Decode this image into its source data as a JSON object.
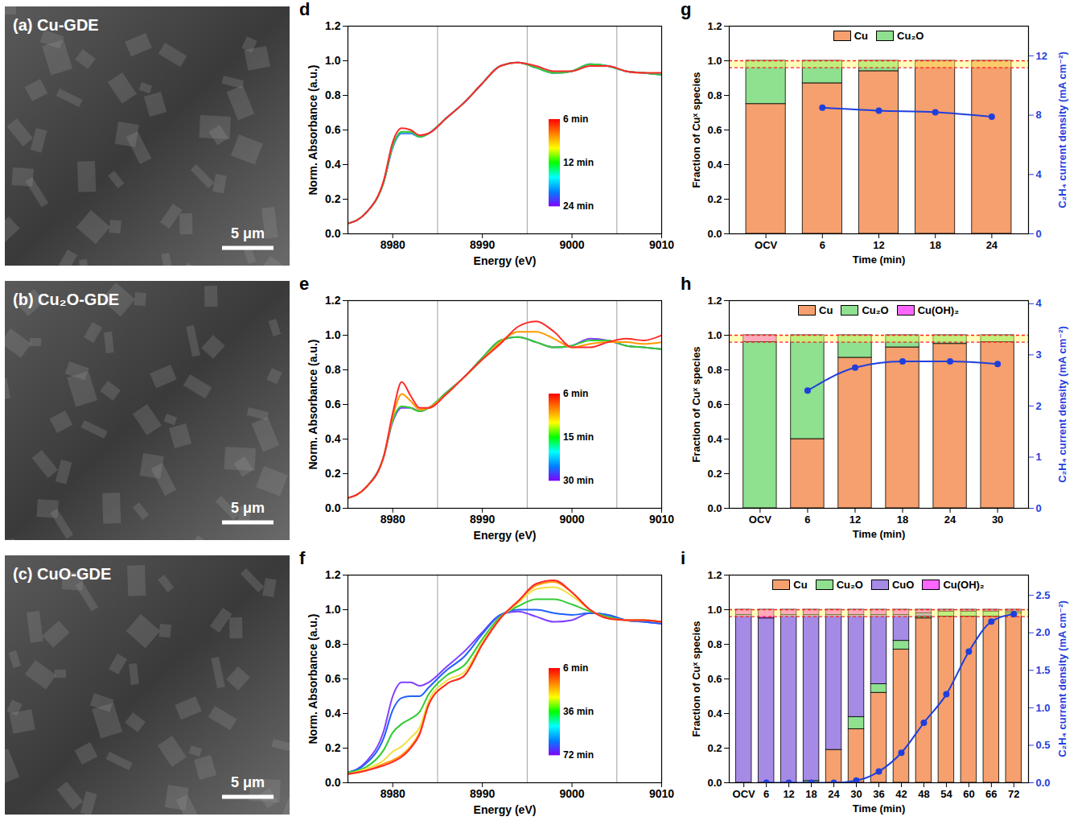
{
  "images": [
    {
      "label": "(a) Cu-GDE",
      "scale_bar": "5 μm"
    },
    {
      "label": "(b) Cu₂O-GDE",
      "scale_bar": "5 μm"
    },
    {
      "label": "(c) CuO-GDE",
      "scale_bar": "5 μm"
    }
  ],
  "chart_data": [
    {
      "type": "line",
      "panel_label": "d",
      "xlabel": "Energy (eV)",
      "ylabel": "Norm. Absorbance (a.u.)",
      "xlim": [
        8975,
        9010
      ],
      "xticks": [
        8980,
        8990,
        9000,
        9010
      ],
      "ylim": [
        0,
        1.2
      ],
      "yticks": [
        {
          "value": 0,
          "label": "0.0"
        },
        {
          "value": 0.2,
          "label": "0.2"
        },
        {
          "value": 0.4,
          "label": "0.4"
        },
        {
          "value": 0.6,
          "label": "0.6"
        },
        {
          "value": 0.8,
          "label": "0.8"
        },
        {
          "value": 1,
          "label": "1.0"
        },
        {
          "value": 1.2,
          "label": "1.2"
        }
      ],
      "reference_lines": [
        8985,
        8995,
        9005
      ],
      "x": [
        8975,
        8977,
        8979,
        8980,
        8981,
        8982,
        8983,
        8984,
        8986,
        8988,
        8990,
        8992,
        8994,
        8996,
        8998,
        9000,
        9002,
        9004,
        9006,
        9008,
        9010
      ],
      "series": [
        {
          "color": "#8040ff",
          "values": [
            0.06,
            0.12,
            0.3,
            0.5,
            0.58,
            0.58,
            0.56,
            0.58,
            0.67,
            0.76,
            0.87,
            0.97,
            0.99,
            0.96,
            0.93,
            0.94,
            0.98,
            0.97,
            0.94,
            0.93,
            0.92
          ]
        },
        {
          "color": "#3399ff",
          "values": [
            0.06,
            0.12,
            0.3,
            0.5,
            0.58,
            0.58,
            0.56,
            0.58,
            0.67,
            0.76,
            0.87,
            0.97,
            0.99,
            0.96,
            0.93,
            0.94,
            0.98,
            0.97,
            0.94,
            0.93,
            0.92
          ]
        },
        {
          "color": "#33cc33",
          "values": [
            0.06,
            0.12,
            0.3,
            0.51,
            0.59,
            0.59,
            0.56,
            0.58,
            0.67,
            0.76,
            0.87,
            0.97,
            0.99,
            0.96,
            0.93,
            0.94,
            0.98,
            0.97,
            0.94,
            0.93,
            0.92
          ]
        },
        {
          "color": "#ff2a2a",
          "values": [
            0.06,
            0.12,
            0.31,
            0.53,
            0.61,
            0.6,
            0.57,
            0.58,
            0.67,
            0.76,
            0.87,
            0.97,
            0.99,
            0.97,
            0.94,
            0.94,
            0.97,
            0.97,
            0.94,
            0.93,
            0.93
          ]
        }
      ],
      "colorbar": {
        "labels": [
          "6 min",
          "12 min",
          "24 min"
        ],
        "colors": [
          "#ff0000",
          "#ff8000",
          "#ffff00",
          "#00ff00",
          "#00ffff",
          "#0080ff",
          "#8000ff"
        ]
      }
    },
    {
      "type": "line",
      "panel_label": "e",
      "xlabel": "Energy (eV)",
      "ylabel": "Norm. Absorbance (a.u.)",
      "xlim": [
        8975,
        9010
      ],
      "xticks": [
        8980,
        8990,
        9000,
        9010
      ],
      "ylim": [
        0,
        1.2
      ],
      "yticks": [
        {
          "value": 0,
          "label": "0.0"
        },
        {
          "value": 0.2,
          "label": "0.2"
        },
        {
          "value": 0.4,
          "label": "0.4"
        },
        {
          "value": 0.6,
          "label": "0.6"
        },
        {
          "value": 0.8,
          "label": "0.8"
        },
        {
          "value": 1,
          "label": "1.0"
        },
        {
          "value": 1.2,
          "label": "1.2"
        }
      ],
      "reference_lines": [
        8985,
        8995,
        9005
      ],
      "x": [
        8975,
        8977,
        8979,
        8980,
        8981,
        8982,
        8983,
        8984,
        8986,
        8988,
        8990,
        8992,
        8994,
        8996,
        8998,
        9000,
        9002,
        9004,
        9006,
        9008,
        9010
      ],
      "series": [
        {
          "color": "#8040ff",
          "values": [
            0.06,
            0.12,
            0.3,
            0.5,
            0.58,
            0.58,
            0.56,
            0.58,
            0.67,
            0.76,
            0.87,
            0.97,
            0.99,
            0.96,
            0.93,
            0.94,
            0.98,
            0.97,
            0.94,
            0.93,
            0.92
          ]
        },
        {
          "color": "#33cc33",
          "values": [
            0.06,
            0.12,
            0.3,
            0.51,
            0.59,
            0.58,
            0.56,
            0.58,
            0.67,
            0.76,
            0.87,
            0.97,
            0.99,
            0.96,
            0.93,
            0.94,
            0.97,
            0.97,
            0.94,
            0.93,
            0.92
          ]
        },
        {
          "color": "#ff9900",
          "values": [
            0.06,
            0.12,
            0.3,
            0.53,
            0.66,
            0.62,
            0.57,
            0.58,
            0.66,
            0.76,
            0.86,
            0.96,
            1.02,
            1.02,
            0.98,
            0.93,
            0.95,
            0.96,
            0.96,
            0.95,
            0.96
          ]
        },
        {
          "color": "#ff2a2a",
          "values": [
            0.06,
            0.12,
            0.3,
            0.55,
            0.73,
            0.65,
            0.58,
            0.58,
            0.66,
            0.76,
            0.86,
            0.95,
            1.05,
            1.08,
            1.02,
            0.93,
            0.93,
            0.96,
            0.98,
            0.97,
            1.0
          ]
        }
      ],
      "colorbar": {
        "labels": [
          "6 min",
          "15 min",
          "30 min"
        ],
        "colors": [
          "#ff0000",
          "#ff8000",
          "#ffff00",
          "#00ff00",
          "#00ffff",
          "#0080ff",
          "#8000ff"
        ]
      }
    },
    {
      "type": "line",
      "panel_label": "f",
      "xlabel": "Energy (eV)",
      "ylabel": "Norm. Absorbance (a.u.)",
      "xlim": [
        8975,
        9010
      ],
      "xticks": [
        8980,
        8990,
        9000,
        9010
      ],
      "ylim": [
        0,
        1.2
      ],
      "yticks": [
        {
          "value": 0,
          "label": "0.0"
        },
        {
          "value": 0.2,
          "label": "0.2"
        },
        {
          "value": 0.4,
          "label": "0.4"
        },
        {
          "value": 0.6,
          "label": "0.6"
        },
        {
          "value": 0.8,
          "label": "0.8"
        },
        {
          "value": 1,
          "label": "1.0"
        },
        {
          "value": 1.2,
          "label": "1.2"
        }
      ],
      "reference_lines": [
        8985,
        8995,
        9005
      ],
      "x": [
        8975,
        8977,
        8979,
        8980,
        8981,
        8982,
        8983,
        8984,
        8986,
        8988,
        8990,
        8992,
        8994,
        8996,
        8998,
        9000,
        9002,
        9004,
        9006,
        9008,
        9010
      ],
      "series": [
        {
          "color": "#8040ff",
          "values": [
            0.06,
            0.12,
            0.3,
            0.5,
            0.58,
            0.58,
            0.56,
            0.58,
            0.67,
            0.76,
            0.87,
            0.97,
            0.99,
            0.96,
            0.93,
            0.94,
            0.98,
            0.97,
            0.94,
            0.93,
            0.92
          ]
        },
        {
          "color": "#2060ff",
          "values": [
            0.06,
            0.11,
            0.26,
            0.42,
            0.49,
            0.5,
            0.5,
            0.55,
            0.65,
            0.73,
            0.86,
            0.97,
            1.0,
            1.0,
            0.98,
            0.97,
            0.98,
            0.97,
            0.94,
            0.93,
            0.92
          ]
        },
        {
          "color": "#33cc33",
          "values": [
            0.06,
            0.09,
            0.19,
            0.29,
            0.34,
            0.37,
            0.41,
            0.51,
            0.62,
            0.68,
            0.83,
            0.96,
            1.02,
            1.06,
            1.06,
            1.03,
            0.99,
            0.96,
            0.94,
            0.94,
            0.93
          ]
        },
        {
          "color": "#f0e040",
          "values": [
            0.05,
            0.08,
            0.13,
            0.18,
            0.21,
            0.26,
            0.32,
            0.47,
            0.59,
            0.64,
            0.81,
            0.95,
            1.04,
            1.12,
            1.13,
            1.08,
            1.0,
            0.95,
            0.94,
            0.94,
            0.93
          ]
        },
        {
          "color": "#ff9900",
          "values": [
            0.05,
            0.07,
            0.11,
            0.13,
            0.16,
            0.21,
            0.29,
            0.45,
            0.57,
            0.62,
            0.8,
            0.95,
            1.05,
            1.14,
            1.16,
            1.1,
            1.0,
            0.95,
            0.94,
            0.94,
            0.93
          ]
        },
        {
          "color": "#ff2a2a",
          "values": [
            0.05,
            0.07,
            0.1,
            0.12,
            0.15,
            0.2,
            0.28,
            0.45,
            0.57,
            0.62,
            0.8,
            0.95,
            1.05,
            1.15,
            1.17,
            1.1,
            1.0,
            0.95,
            0.94,
            0.94,
            0.93
          ]
        }
      ],
      "colorbar": {
        "labels": [
          "6 min",
          "36 min",
          "72 min"
        ],
        "colors": [
          "#ff0000",
          "#ff8000",
          "#ffff00",
          "#00ff00",
          "#00ffff",
          "#0080ff",
          "#8000ff"
        ]
      }
    },
    {
      "type": "bar",
      "panel_label": "g",
      "stacked": true,
      "legend": "top",
      "grid": false,
      "xlabel": "Time (min)",
      "ylabel": "Fraction of Cuˣ species",
      "y2label": "C₂H₄ current density (mA cm⁻²)",
      "categories": [
        "OCV",
        "6",
        "12",
        "18",
        "24"
      ],
      "ylim": [
        0,
        1.2
      ],
      "yticks": [
        {
          "value": 0,
          "label": "0.0"
        },
        {
          "value": 0.2,
          "label": "0.2"
        },
        {
          "value": 0.4,
          "label": "0.4"
        },
        {
          "value": 0.6,
          "label": "0.6"
        },
        {
          "value": 0.8,
          "label": "0.8"
        },
        {
          "value": 1,
          "label": "1.0"
        },
        {
          "value": 1.2,
          "label": "1.2"
        }
      ],
      "y2lim": [
        0,
        14
      ],
      "y2ticks": [
        0,
        4,
        8,
        12
      ],
      "band": [
        0.96,
        1.0
      ],
      "series": [
        {
          "name": "Cu",
          "color": "#f5a06e",
          "values": [
            0.75,
            0.87,
            0.94,
            1.0,
            1.0
          ]
        },
        {
          "name": "Cu₂O",
          "color": "#8fe08f",
          "values": [
            0.25,
            0.13,
            0.06,
            0,
            0
          ]
        },
        {
          "type": "line",
          "axis": "y2",
          "color": "#1f3fdc",
          "marker": "circle",
          "line_style": "solid",
          "values": [
            null,
            8.5,
            8.3,
            8.2,
            7.9
          ]
        }
      ]
    },
    {
      "type": "bar",
      "panel_label": "h",
      "stacked": true,
      "legend": "top",
      "grid": false,
      "xlabel": "Time (min)",
      "ylabel": "Fraction of Cuˣ species",
      "y2label": "C₂H₄ current density (mA cm⁻²)",
      "categories": [
        "OCV",
        "6",
        "12",
        "18",
        "24",
        "30"
      ],
      "ylim": [
        0,
        1.2
      ],
      "yticks": [
        {
          "value": 0,
          "label": "0.0"
        },
        {
          "value": 0.2,
          "label": "0.2"
        },
        {
          "value": 0.4,
          "label": "0.4"
        },
        {
          "value": 0.6,
          "label": "0.6"
        },
        {
          "value": 0.8,
          "label": "0.8"
        },
        {
          "value": 1,
          "label": "1.0"
        },
        {
          "value": 1.2,
          "label": "1.2"
        }
      ],
      "y2lim": [
        0,
        4.06
      ],
      "y2ticks": [
        0,
        1,
        2,
        3,
        4
      ],
      "band": [
        0.96,
        1.0
      ],
      "series": [
        {
          "name": "Cu",
          "color": "#f5a06e",
          "values": [
            0,
            0.4,
            0.87,
            0.93,
            0.95,
            0.96
          ]
        },
        {
          "name": "Cu₂O",
          "color": "#8fe08f",
          "values": [
            0.96,
            0.6,
            0.13,
            0.07,
            0.05,
            0.04
          ]
        },
        {
          "name": "Cu(OH)₂",
          "color": "#ff66ff",
          "values": [
            0.04,
            0,
            0,
            0,
            0,
            0
          ]
        },
        {
          "type": "line",
          "axis": "y2",
          "color": "#1f3fdc",
          "marker": "circle",
          "line_style": "solid",
          "values": [
            null,
            2.3,
            2.75,
            2.87,
            2.87,
            2.82
          ]
        }
      ]
    },
    {
      "type": "bar",
      "panel_label": "i",
      "stacked": true,
      "legend": "top",
      "grid": false,
      "xlabel": "Time (min)",
      "ylabel": "Fraction of Cuˣ species",
      "y2label": "C₂H₄ current density (mA cm⁻²)",
      "categories": [
        "OCV",
        "6",
        "12",
        "18",
        "24",
        "30",
        "36",
        "42",
        "48",
        "54",
        "60",
        "66",
        "72"
      ],
      "ylim": [
        0,
        1.2
      ],
      "yticks": [
        {
          "value": 0,
          "label": "0.0"
        },
        {
          "value": 0.2,
          "label": "0.2"
        },
        {
          "value": 0.4,
          "label": "0.4"
        },
        {
          "value": 0.6,
          "label": "0.6"
        },
        {
          "value": 0.8,
          "label": "0.8"
        },
        {
          "value": 1,
          "label": "1.0"
        },
        {
          "value": 1.2,
          "label": "1.2"
        }
      ],
      "y2lim": [
        0,
        2.77
      ],
      "y2ticks": [
        {
          "value": 0,
          "label": "0.0"
        },
        {
          "value": 0.5,
          "label": "0.5"
        },
        {
          "value": 1,
          "label": "1.0"
        },
        {
          "value": 1.5,
          "label": "1.5"
        },
        {
          "value": 2,
          "label": "2.0"
        },
        {
          "value": 2.5,
          "label": "2.5"
        }
      ],
      "band": [
        0.96,
        1.0
      ],
      "series": [
        {
          "name": "Cu",
          "color": "#f5a06e",
          "values": [
            0,
            0,
            0,
            0,
            0.19,
            0.31,
            0.52,
            0.77,
            0.95,
            0.96,
            0.96,
            0.96,
            0.98
          ]
        },
        {
          "name": "Cu₂O",
          "color": "#8fe08f",
          "values": [
            0,
            0,
            0,
            0.01,
            0,
            0.07,
            0.05,
            0.05,
            0.01,
            0.03,
            0.03,
            0.03,
            0.01
          ]
        },
        {
          "name": "CuO",
          "color": "#a58ae6",
          "values": [
            0.97,
            0.95,
            0.97,
            0.96,
            0.78,
            0.59,
            0.4,
            0.15,
            0.02,
            0,
            0,
            0,
            0
          ]
        },
        {
          "name": "Cu(OH)₂",
          "color": "#ff66ff",
          "values": [
            0.03,
            0.05,
            0.03,
            0.03,
            0.03,
            0.03,
            0.03,
            0.03,
            0.02,
            0.01,
            0.01,
            0.01,
            0.01
          ]
        },
        {
          "type": "line",
          "axis": "y2",
          "color": "#1f3fdc",
          "marker": "circle",
          "line_style": "solid",
          "values": [
            null,
            0,
            0,
            0,
            0,
            0.03,
            0.15,
            0.4,
            0.8,
            1.18,
            1.75,
            2.15,
            2.25
          ]
        }
      ]
    }
  ]
}
